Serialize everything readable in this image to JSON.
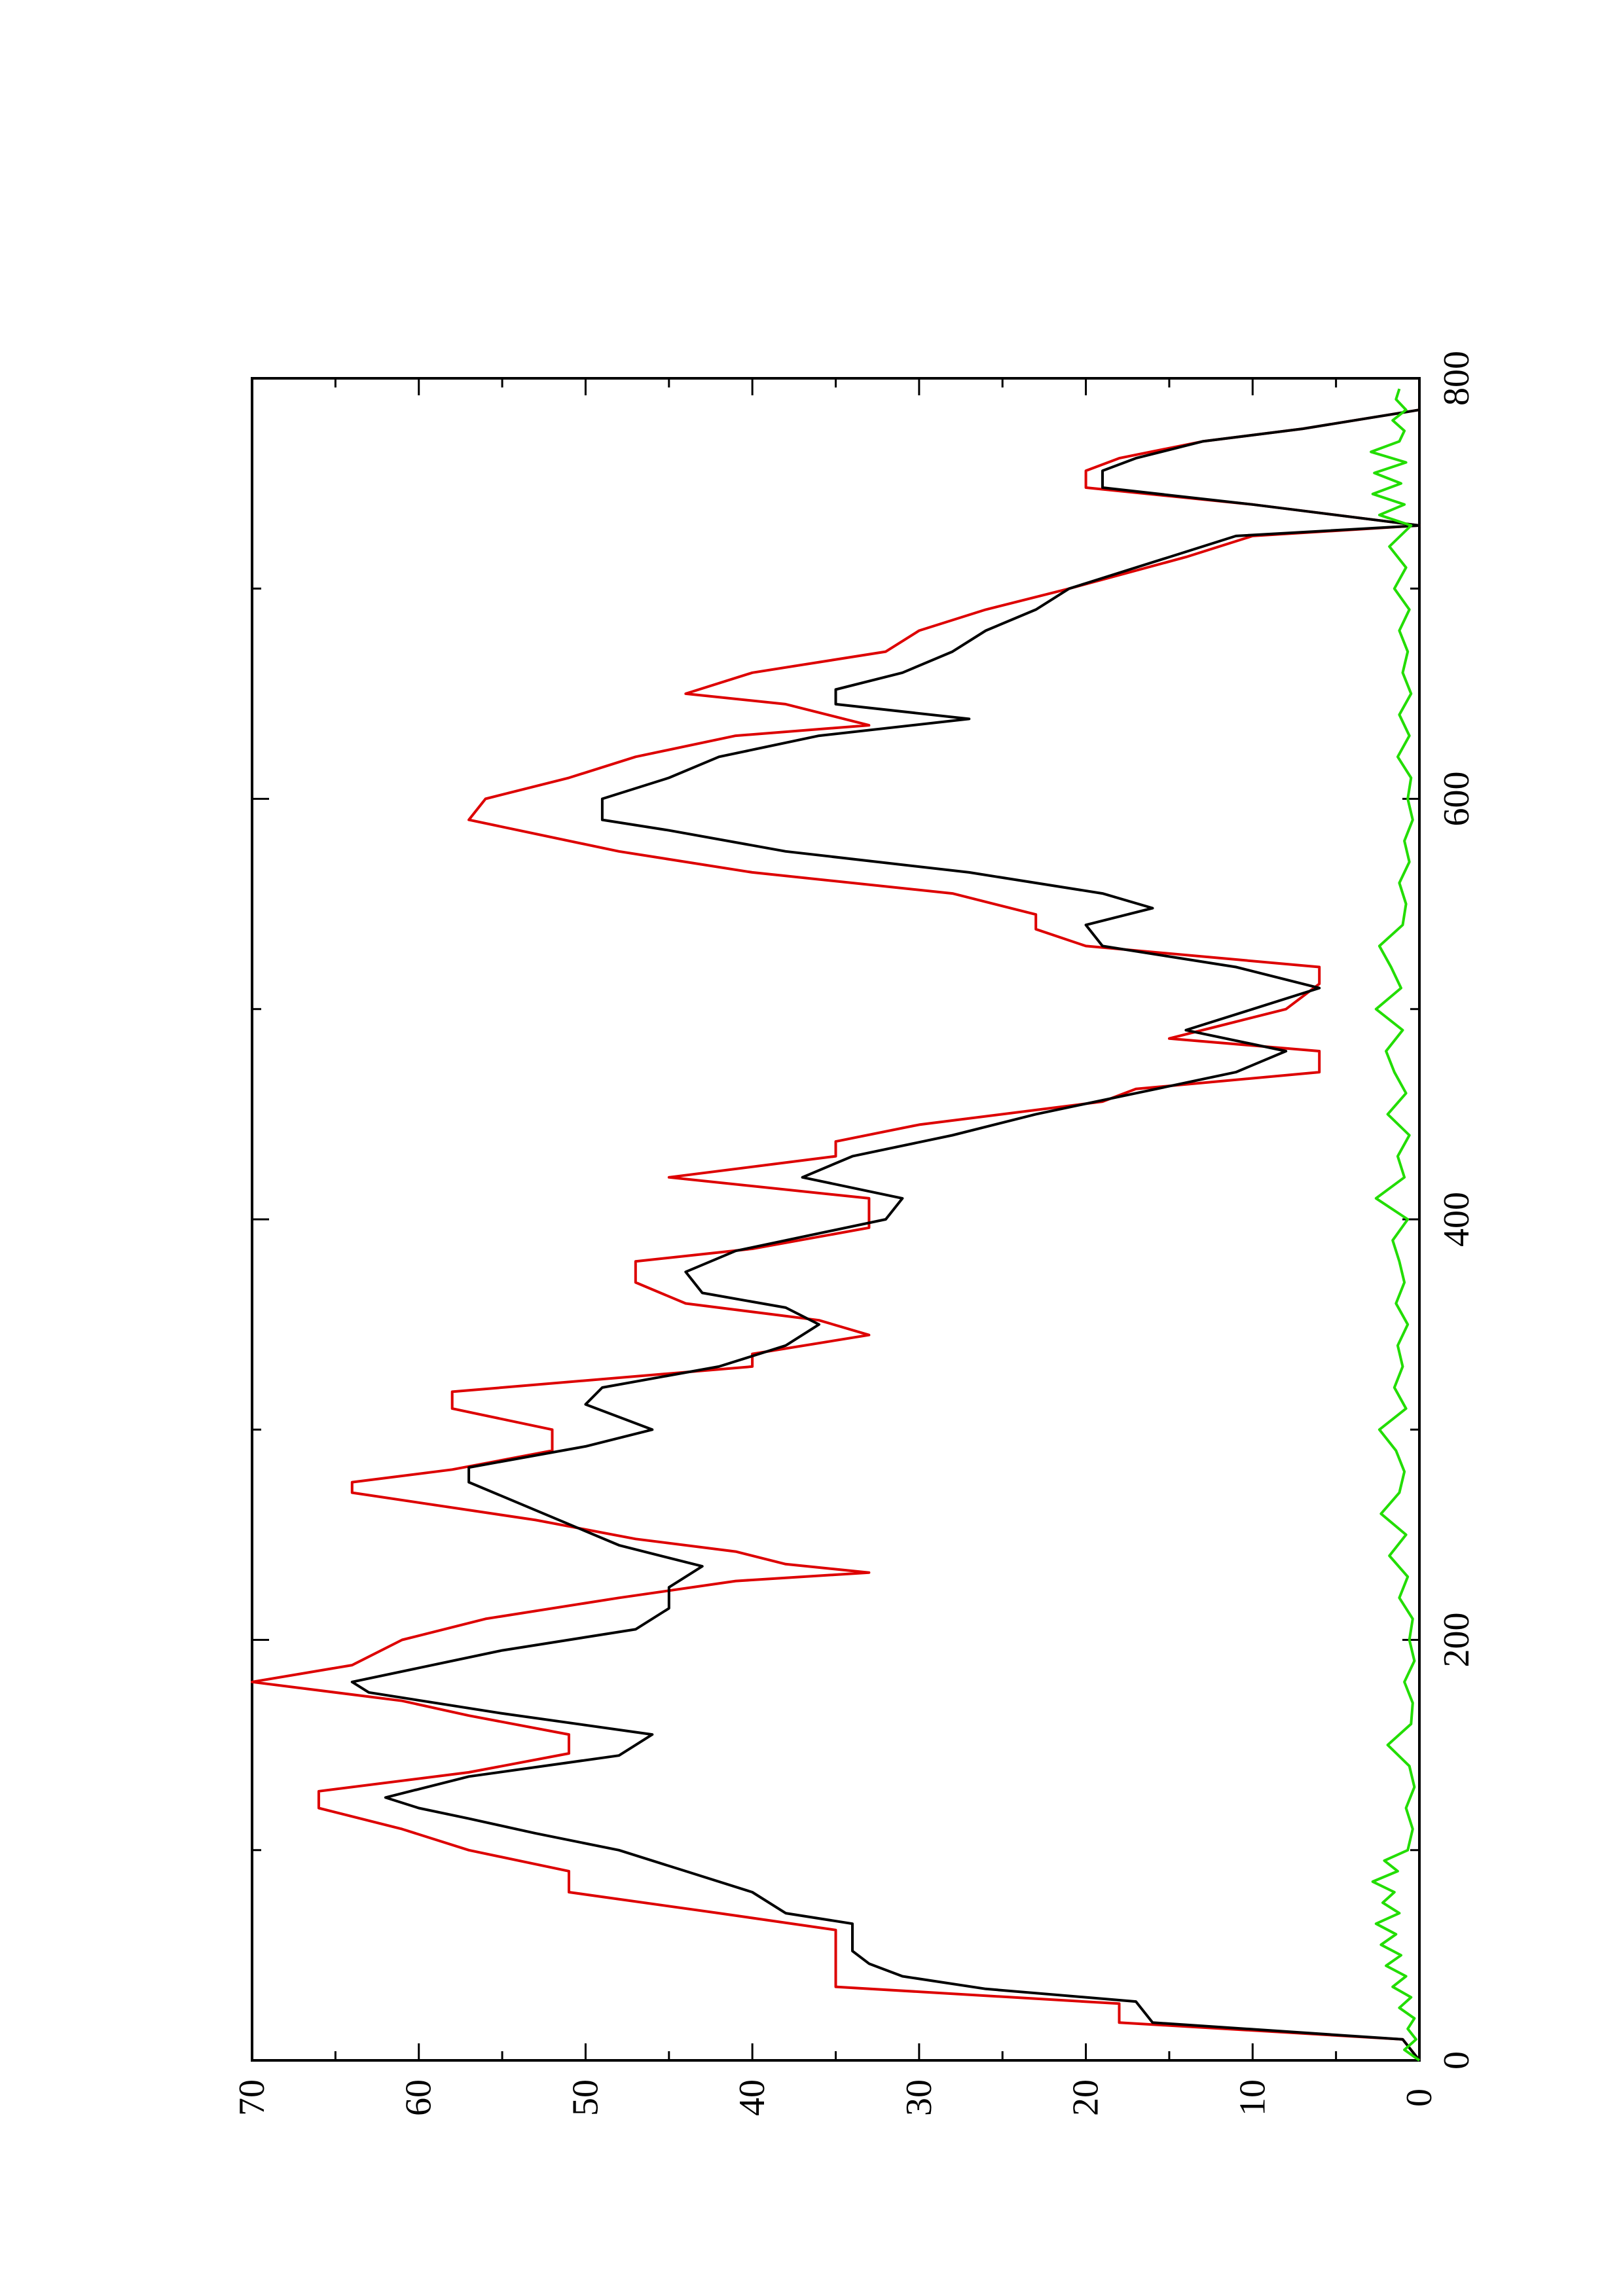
{
  "chart_data": {
    "type": "line",
    "orientation": "rotated-90-ccw",
    "title": "",
    "xlabel": "",
    "ylabel": "",
    "xlim": [
      0,
      800
    ],
    "ylim": [
      0,
      70
    ],
    "x_ticks": [
      "0",
      "200",
      "400",
      "600",
      "800"
    ],
    "y_ticks": [
      "0",
      "10",
      "20",
      "30",
      "40",
      "50",
      "60",
      "70"
    ],
    "x_minor_step": 100,
    "y_minor_step": 5,
    "grid": false,
    "legend": "none",
    "series": [
      {
        "color": "#dd0000",
        "step": "stepped-linear",
        "points": [
          [
            0,
            0
          ],
          [
            10,
            1
          ],
          [
            18,
            18
          ],
          [
            27,
            18
          ],
          [
            35,
            35
          ],
          [
            62,
            35
          ],
          [
            70,
            42
          ],
          [
            80,
            51
          ],
          [
            90,
            51
          ],
          [
            100,
            57
          ],
          [
            110,
            61
          ],
          [
            120,
            66
          ],
          [
            128,
            66
          ],
          [
            137,
            57
          ],
          [
            146,
            51
          ],
          [
            155,
            51
          ],
          [
            164,
            57
          ],
          [
            171,
            61
          ],
          [
            180,
            70
          ],
          [
            188,
            64
          ],
          [
            200,
            61
          ],
          [
            210,
            56
          ],
          [
            220,
            48
          ],
          [
            228,
            41
          ],
          [
            232,
            33
          ],
          [
            236,
            38
          ],
          [
            242,
            41
          ],
          [
            248,
            47
          ],
          [
            257,
            53
          ],
          [
            270,
            64
          ],
          [
            275,
            64
          ],
          [
            281,
            58
          ],
          [
            290,
            52
          ],
          [
            300,
            52
          ],
          [
            310,
            58
          ],
          [
            318,
            58
          ],
          [
            330,
            40
          ],
          [
            336,
            40
          ],
          [
            345,
            33
          ],
          [
            352,
            36
          ],
          [
            360,
            44
          ],
          [
            370,
            47
          ],
          [
            380,
            47
          ],
          [
            386,
            40
          ],
          [
            396,
            33
          ],
          [
            410,
            33
          ],
          [
            420,
            45
          ],
          [
            430,
            35
          ],
          [
            437,
            35
          ],
          [
            445,
            30
          ],
          [
            456,
            19
          ],
          [
            462,
            17
          ],
          [
            470,
            6
          ],
          [
            480,
            6
          ],
          [
            486,
            15
          ],
          [
            492,
            12
          ],
          [
            500,
            8
          ],
          [
            512,
            6
          ],
          [
            520,
            6
          ],
          [
            530,
            20
          ],
          [
            538,
            23
          ],
          [
            545,
            23
          ],
          [
            555,
            28
          ],
          [
            565,
            40
          ],
          [
            575,
            48
          ],
          [
            590,
            57
          ],
          [
            600,
            56
          ],
          [
            610,
            51
          ],
          [
            620,
            47
          ],
          [
            630,
            41
          ],
          [
            635,
            33
          ],
          [
            645,
            38
          ],
          [
            650,
            44
          ],
          [
            660,
            40
          ],
          [
            670,
            32
          ],
          [
            680,
            30
          ],
          [
            690,
            26
          ],
          [
            700,
            21
          ],
          [
            715,
            14
          ],
          [
            725,
            10
          ],
          [
            730,
            0
          ],
          [
            740,
            10
          ],
          [
            748,
            20
          ],
          [
            756,
            20
          ],
          [
            762,
            18
          ],
          [
            770,
            13
          ],
          [
            776,
            7
          ],
          [
            785,
            0
          ]
        ]
      },
      {
        "color": "#000000",
        "step": "linear",
        "points": [
          [
            0,
            0
          ],
          [
            10,
            1
          ],
          [
            18,
            16
          ],
          [
            28,
            17
          ],
          [
            34,
            26
          ],
          [
            40,
            31
          ],
          [
            46,
            33
          ],
          [
            52,
            34
          ],
          [
            65,
            34
          ],
          [
            70,
            38
          ],
          [
            80,
            40
          ],
          [
            90,
            44
          ],
          [
            100,
            48
          ],
          [
            108,
            53
          ],
          [
            115,
            57
          ],
          [
            120,
            60
          ],
          [
            125,
            62
          ],
          [
            135,
            57
          ],
          [
            145,
            48
          ],
          [
            155,
            46
          ],
          [
            165,
            55
          ],
          [
            175,
            63
          ],
          [
            180,
            64
          ],
          [
            195,
            55
          ],
          [
            205,
            47
          ],
          [
            215,
            45
          ],
          [
            225,
            45
          ],
          [
            235,
            43
          ],
          [
            245,
            48
          ],
          [
            255,
            51
          ],
          [
            265,
            54
          ],
          [
            275,
            57
          ],
          [
            282,
            57
          ],
          [
            292,
            50
          ],
          [
            300,
            46
          ],
          [
            312,
            50
          ],
          [
            320,
            49
          ],
          [
            330,
            42
          ],
          [
            340,
            38
          ],
          [
            350,
            36
          ],
          [
            358,
            38
          ],
          [
            365,
            43
          ],
          [
            375,
            44
          ],
          [
            385,
            41
          ],
          [
            400,
            32
          ],
          [
            410,
            31
          ],
          [
            420,
            37
          ],
          [
            430,
            34
          ],
          [
            440,
            28
          ],
          [
            450,
            23
          ],
          [
            460,
            17
          ],
          [
            470,
            11
          ],
          [
            480,
            8
          ],
          [
            490,
            14
          ],
          [
            500,
            10
          ],
          [
            510,
            6
          ],
          [
            520,
            11
          ],
          [
            530,
            19
          ],
          [
            540,
            20
          ],
          [
            548,
            16
          ],
          [
            555,
            19
          ],
          [
            565,
            27
          ],
          [
            575,
            38
          ],
          [
            585,
            45
          ],
          [
            590,
            49
          ],
          [
            600,
            49
          ],
          [
            610,
            45
          ],
          [
            620,
            42
          ],
          [
            630,
            36
          ],
          [
            638,
            27
          ],
          [
            645,
            35
          ],
          [
            652,
            35
          ],
          [
            660,
            31
          ],
          [
            670,
            28
          ],
          [
            680,
            26
          ],
          [
            690,
            23
          ],
          [
            700,
            21
          ],
          [
            715,
            15
          ],
          [
            725,
            11
          ],
          [
            730,
            0
          ],
          [
            740,
            10
          ],
          [
            748,
            19
          ],
          [
            756,
            19
          ],
          [
            762,
            17
          ],
          [
            770,
            13
          ],
          [
            776,
            7
          ],
          [
            785,
            0
          ]
        ]
      },
      {
        "color": "#22dd00",
        "step": "noise",
        "points": [
          [
            0,
            0
          ],
          [
            5,
            0.9
          ],
          [
            10,
            0.2
          ],
          [
            15,
            0.7
          ],
          [
            20,
            0.3
          ],
          [
            25,
            1.2
          ],
          [
            30,
            0.5
          ],
          [
            35,
            1.6
          ],
          [
            40,
            0.8
          ],
          [
            45,
            2.0
          ],
          [
            50,
            1.1
          ],
          [
            55,
            2.3
          ],
          [
            60,
            1.4
          ],
          [
            65,
            2.6
          ],
          [
            70,
            1.2
          ],
          [
            75,
            2.2
          ],
          [
            80,
            1.5
          ],
          [
            85,
            2.8
          ],
          [
            90,
            1.3
          ],
          [
            95,
            2.1
          ],
          [
            100,
            0.7
          ],
          [
            110,
            0.4
          ],
          [
            120,
            0.8
          ],
          [
            130,
            0.3
          ],
          [
            140,
            0.6
          ],
          [
            150,
            1.9
          ],
          [
            160,
            0.5
          ],
          [
            170,
            0.4
          ],
          [
            180,
            0.9
          ],
          [
            190,
            0.3
          ],
          [
            200,
            0.6
          ],
          [
            210,
            0.4
          ],
          [
            220,
            1.2
          ],
          [
            230,
            0.7
          ],
          [
            240,
            1.8
          ],
          [
            250,
            0.8
          ],
          [
            260,
            2.3
          ],
          [
            270,
            1.2
          ],
          [
            280,
            0.9
          ],
          [
            290,
            1.4
          ],
          [
            300,
            2.4
          ],
          [
            310,
            0.8
          ],
          [
            320,
            1.5
          ],
          [
            330,
            1.0
          ],
          [
            340,
            1.3
          ],
          [
            350,
            0.7
          ],
          [
            360,
            1.4
          ],
          [
            370,
            0.9
          ],
          [
            380,
            1.2
          ],
          [
            390,
            1.6
          ],
          [
            400,
            0.7
          ],
          [
            410,
            2.6
          ],
          [
            420,
            0.9
          ],
          [
            430,
            1.3
          ],
          [
            440,
            0.6
          ],
          [
            450,
            1.9
          ],
          [
            460,
            0.8
          ],
          [
            470,
            1.5
          ],
          [
            480,
            2.0
          ],
          [
            490,
            1.0
          ],
          [
            500,
            2.6
          ],
          [
            510,
            1.1
          ],
          [
            520,
            1.7
          ],
          [
            530,
            2.4
          ],
          [
            540,
            1.0
          ],
          [
            550,
            0.8
          ],
          [
            560,
            1.2
          ],
          [
            570,
            0.6
          ],
          [
            580,
            0.9
          ],
          [
            590,
            0.4
          ],
          [
            600,
            0.7
          ],
          [
            610,
            0.5
          ],
          [
            620,
            1.3
          ],
          [
            630,
            0.6
          ],
          [
            640,
            1.2
          ],
          [
            650,
            0.5
          ],
          [
            660,
            1.0
          ],
          [
            670,
            0.7
          ],
          [
            680,
            1.2
          ],
          [
            690,
            0.6
          ],
          [
            700,
            1.5
          ],
          [
            710,
            0.8
          ],
          [
            720,
            1.8
          ],
          [
            730,
            0.5
          ],
          [
            735,
            2.4
          ],
          [
            740,
            0.9
          ],
          [
            745,
            2.8
          ],
          [
            750,
            1.1
          ],
          [
            755,
            2.7
          ],
          [
            760,
            0.8
          ],
          [
            765,
            2.9
          ],
          [
            770,
            1.2
          ],
          [
            775,
            0.9
          ],
          [
            780,
            1.6
          ],
          [
            785,
            0.8
          ],
          [
            790,
            1.4
          ],
          [
            795,
            1.2
          ]
        ]
      }
    ]
  }
}
